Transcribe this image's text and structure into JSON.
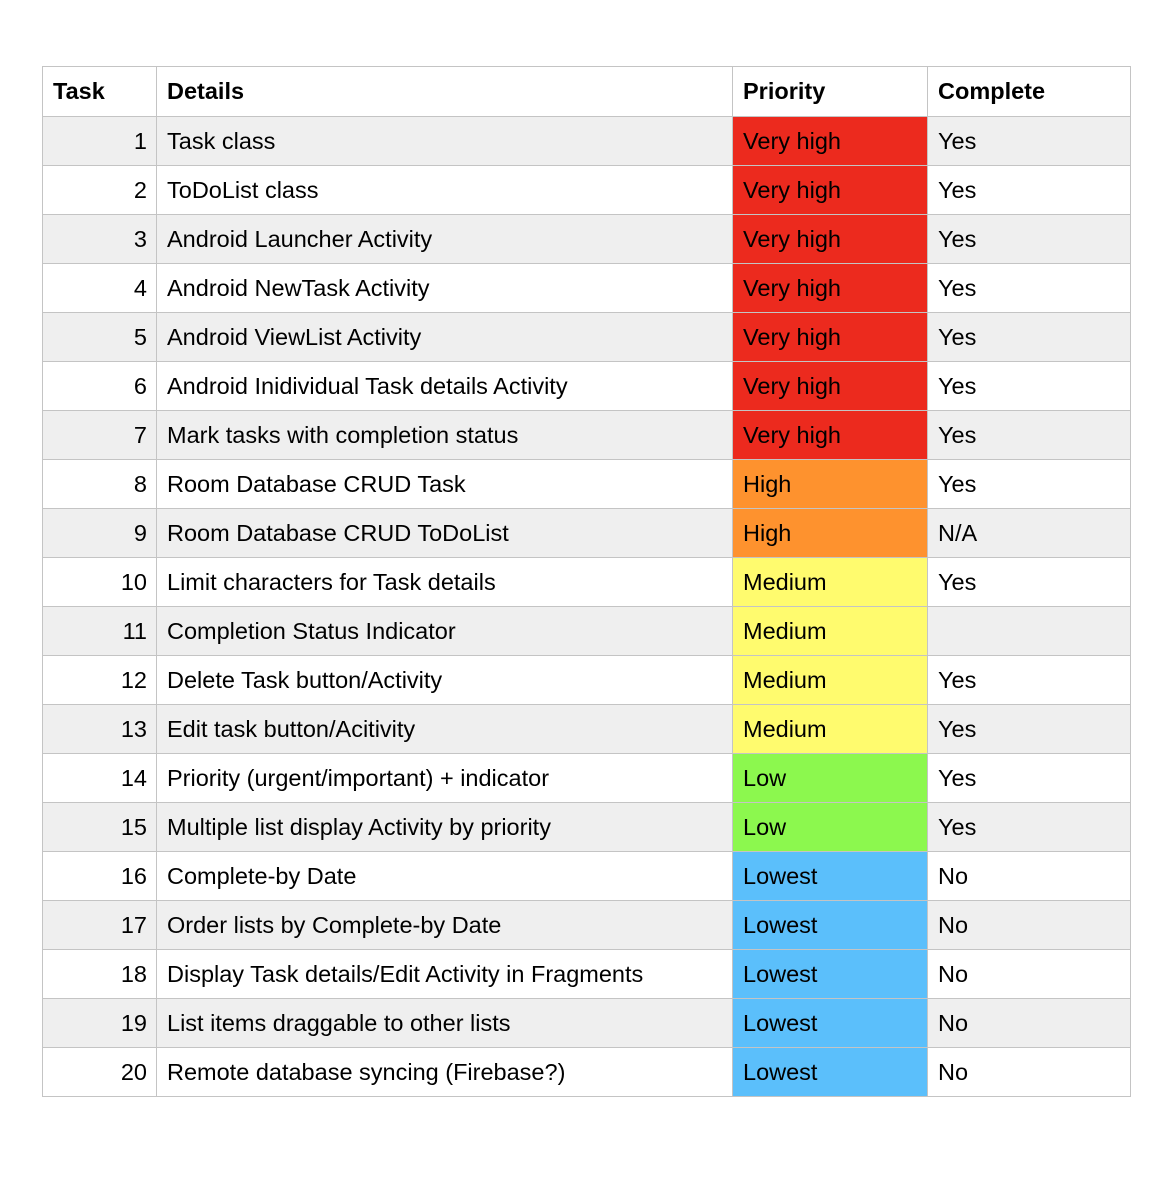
{
  "headers": {
    "task": "Task",
    "details": "Details",
    "priority": "Priority",
    "complete": "Complete"
  },
  "priority_colors": {
    "Very high": "#ec2a1e",
    "High": "#fe922e",
    "Medium": "#fffb6e",
    "Low": "#8cf84e",
    "Lowest": "#5bbffb"
  },
  "rows": [
    {
      "task": "1",
      "details": "Task class",
      "priority": "Very high",
      "complete": "Yes"
    },
    {
      "task": "2",
      "details": "ToDoList class",
      "priority": "Very high",
      "complete": "Yes"
    },
    {
      "task": "3",
      "details": "Android Launcher Activity",
      "priority": "Very high",
      "complete": "Yes"
    },
    {
      "task": "4",
      "details": "Android NewTask Activity",
      "priority": "Very high",
      "complete": "Yes"
    },
    {
      "task": "5",
      "details": "Android ViewList Activity",
      "priority": "Very high",
      "complete": "Yes"
    },
    {
      "task": "6",
      "details": "Android Inidividual Task details Activity",
      "priority": "Very high",
      "complete": "Yes"
    },
    {
      "task": "7",
      "details": "Mark tasks with completion status",
      "priority": "Very high",
      "complete": "Yes"
    },
    {
      "task": "8",
      "details": "Room Database CRUD Task",
      "priority": "High",
      "complete": "Yes"
    },
    {
      "task": "9",
      "details": "Room Database CRUD ToDoList",
      "priority": "High",
      "complete": "N/A"
    },
    {
      "task": "10",
      "details": "Limit characters for Task details",
      "priority": "Medium",
      "complete": "Yes"
    },
    {
      "task": "11",
      "details": "Completion Status Indicator",
      "priority": "Medium",
      "complete": ""
    },
    {
      "task": "12",
      "details": "Delete Task button/Activity",
      "priority": "Medium",
      "complete": "Yes"
    },
    {
      "task": "13",
      "details": "Edit task button/Acitivity",
      "priority": "Medium",
      "complete": "Yes"
    },
    {
      "task": "14",
      "details": "Priority (urgent/important) + indicator",
      "priority": "Low",
      "complete": "Yes"
    },
    {
      "task": "15",
      "details": "Multiple list display Activity by priority",
      "priority": "Low",
      "complete": "Yes"
    },
    {
      "task": "16",
      "details": "Complete-by Date",
      "priority": "Lowest",
      "complete": "No"
    },
    {
      "task": "17",
      "details": "Order lists by Complete-by Date",
      "priority": "Lowest",
      "complete": "No"
    },
    {
      "task": "18",
      "details": "Display Task details/Edit Activity in Fragments",
      "priority": "Lowest",
      "complete": "No"
    },
    {
      "task": "19",
      "details": "List items draggable to other lists",
      "priority": "Lowest",
      "complete": "No"
    },
    {
      "task": "20",
      "details": "Remote database syncing (Firebase?)",
      "priority": "Lowest",
      "complete": "No"
    }
  ]
}
